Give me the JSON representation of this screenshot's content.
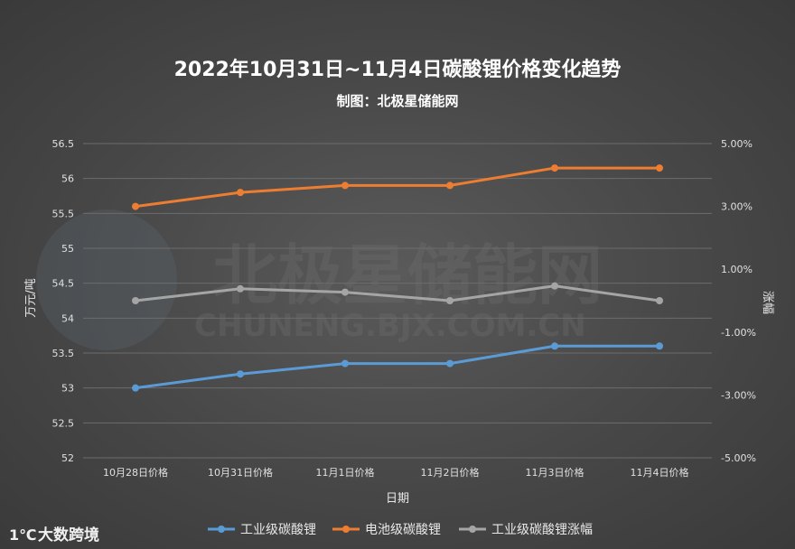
{
  "chart_data": {
    "type": "line",
    "title": "2022年10月31日~11月4日碳酸锂价格变化趋势",
    "subtitle": "制图：北极星储能网",
    "xlabel": "日期",
    "ylabel": "万元/吨",
    "y2label": "涨幅",
    "categories": [
      "10月28日价格",
      "10月31日价格",
      "11月1日价格",
      "11月2日价格",
      "11月3日价格",
      "11月4日价格"
    ],
    "ylim": [
      52,
      56.5
    ],
    "yticks": [
      "52",
      "52.5",
      "53",
      "53.5",
      "54",
      "54.5",
      "55",
      "55.5",
      "56",
      "56.5"
    ],
    "y2lim": [
      -5.0,
      5.0
    ],
    "y2ticks": [
      "-5.00%",
      "-3.00%",
      "-1.00%",
      "1.00%",
      "3.00%",
      "5.00%"
    ],
    "grid": true,
    "legend": "bottom",
    "series": [
      {
        "name": "工业级碳酸锂",
        "axis": "left",
        "color": "#5b9bd5",
        "values": [
          53.0,
          53.2,
          53.35,
          53.35,
          53.6,
          53.6
        ]
      },
      {
        "name": "电池级碳酸锂",
        "axis": "left",
        "color": "#ed7d31",
        "values": [
          55.6,
          55.8,
          55.9,
          55.9,
          56.15,
          56.15
        ]
      },
      {
        "name": "工业级碳酸锂涨幅",
        "axis": "right",
        "color": "#a5a5a5",
        "values": [
          0.0,
          0.38,
          0.27,
          0.0,
          0.47,
          0.0
        ]
      }
    ]
  },
  "watermark": {
    "brand": "北极星储能网",
    "url": "CHUNENG.BJX.COM.CN"
  },
  "footer": {
    "brand_label": "大数跨境"
  }
}
